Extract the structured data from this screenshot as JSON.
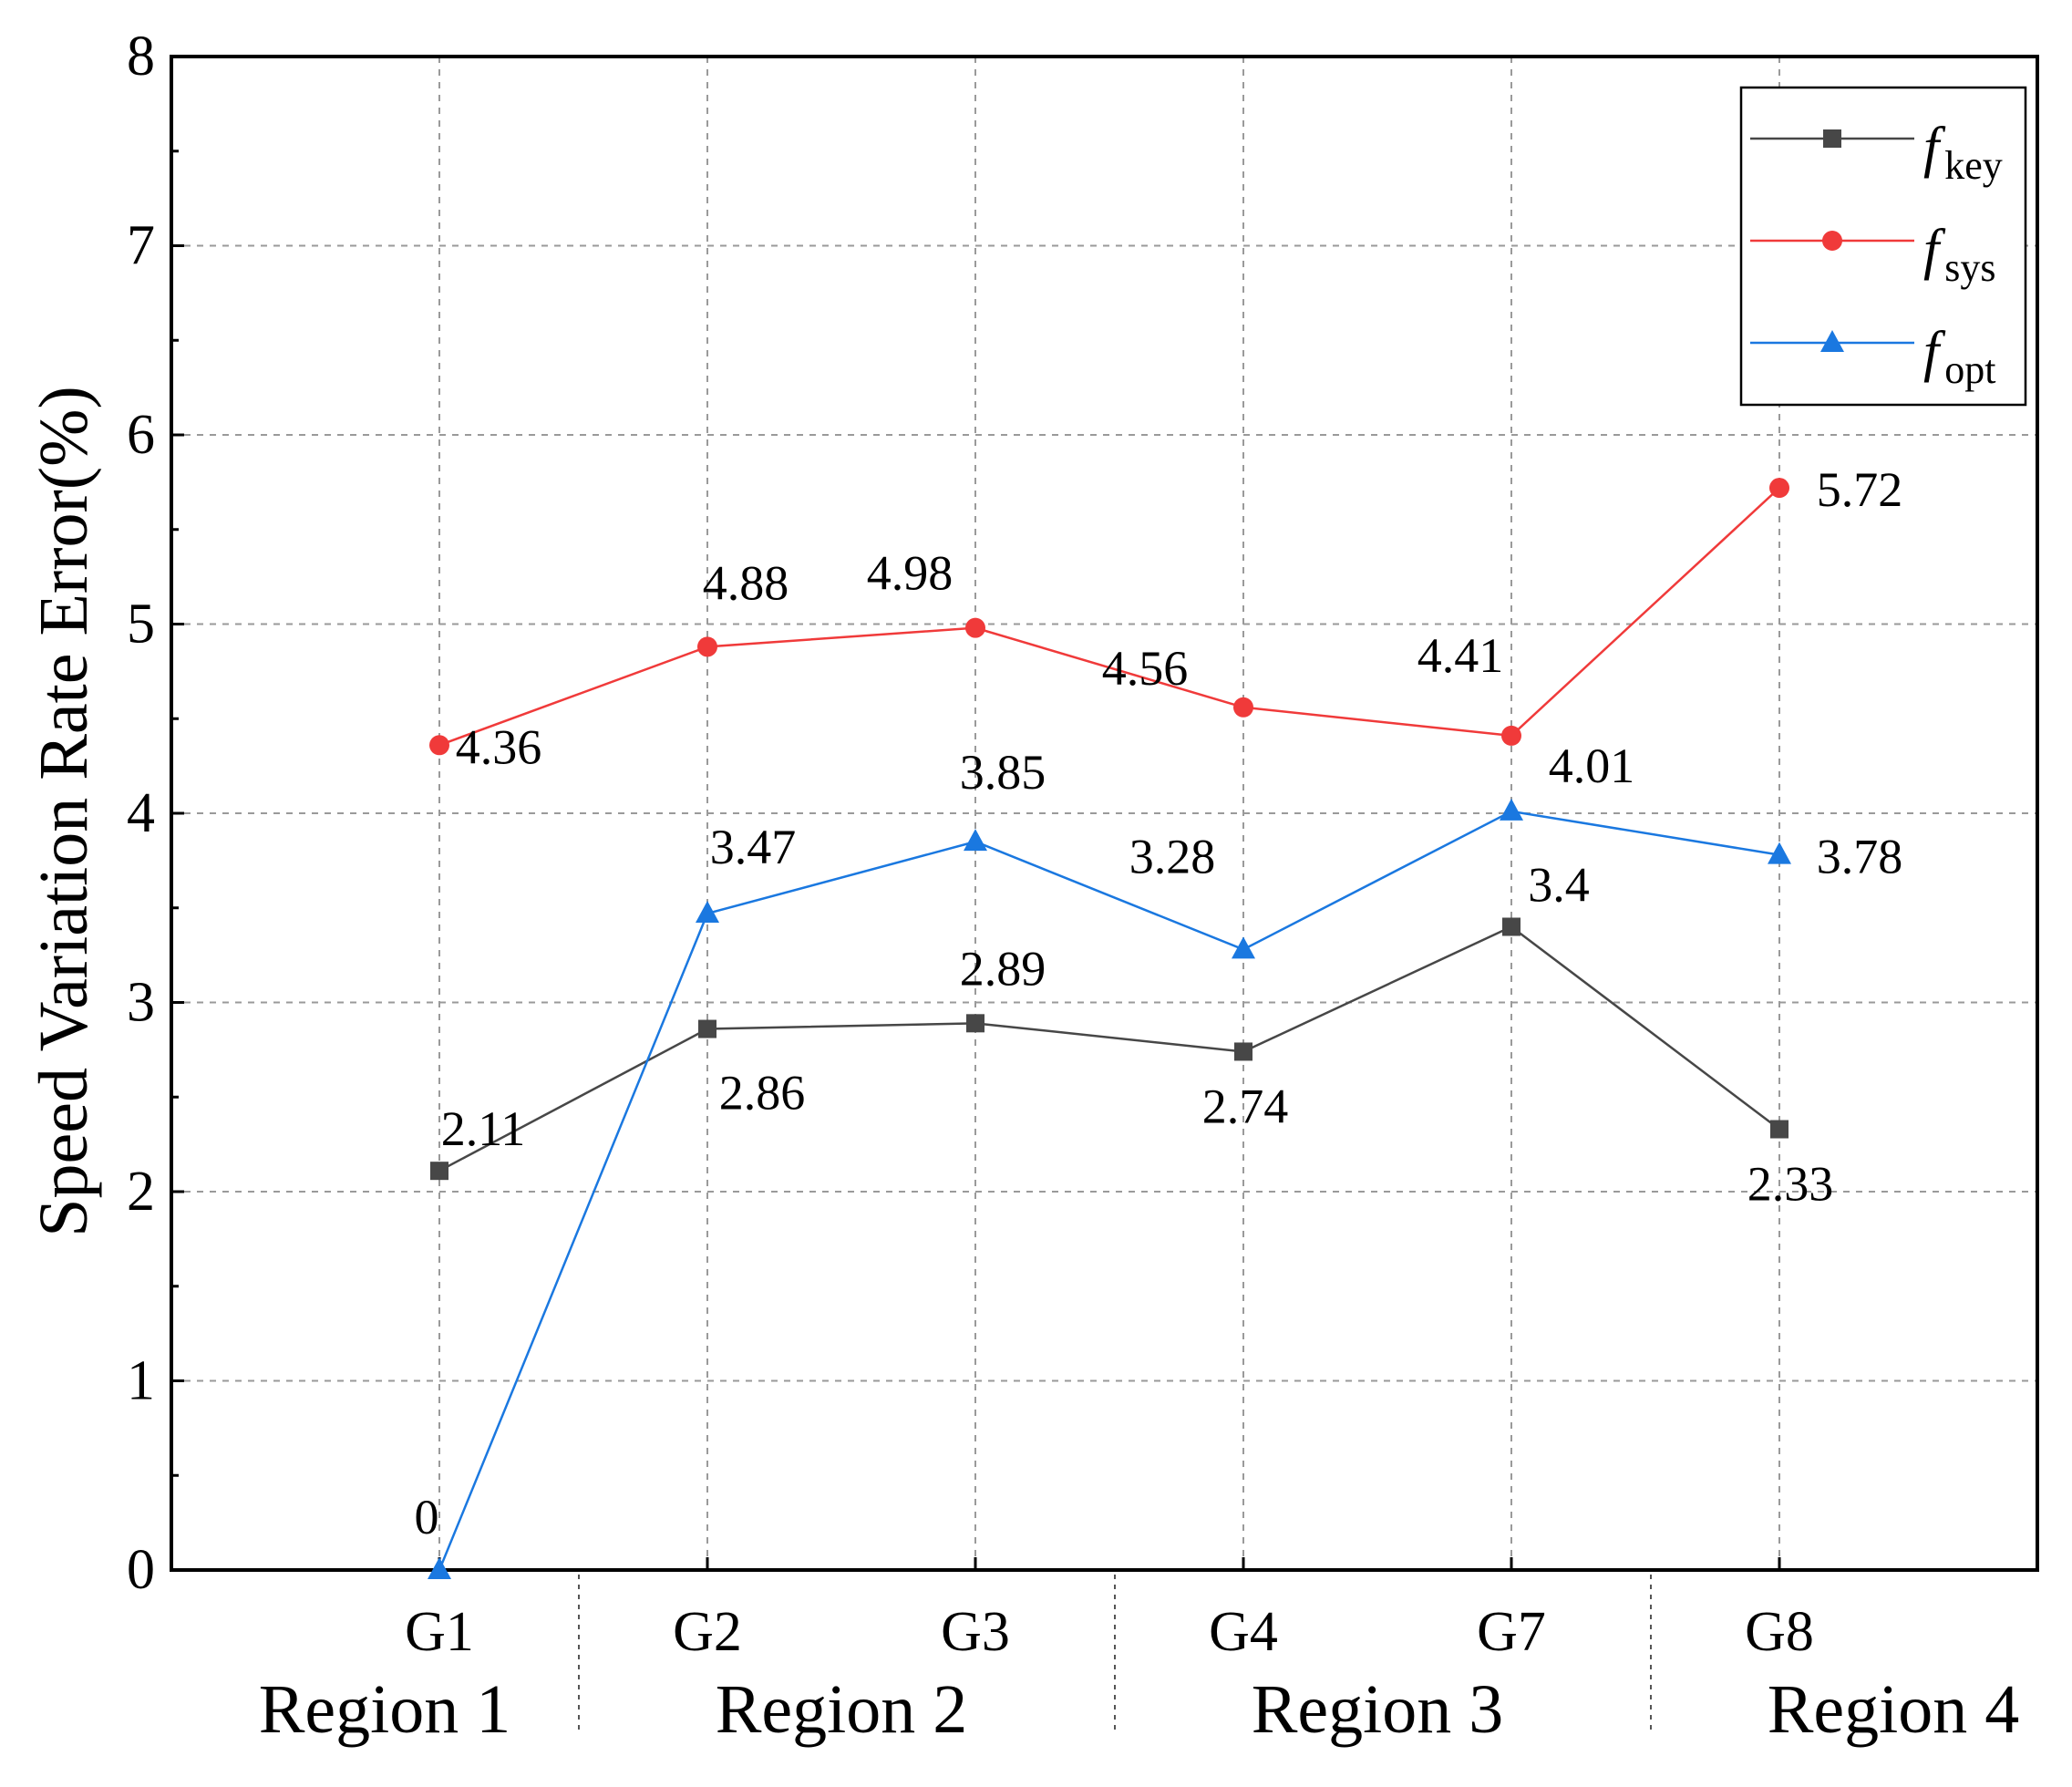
{
  "chart_data": {
    "type": "line",
    "title": "",
    "xlabel": "",
    "ylabel": "Speed Variation Rate Error(%)",
    "ylim": [
      0,
      8
    ],
    "yticks": [
      0,
      1,
      2,
      3,
      4,
      5,
      6,
      7,
      8
    ],
    "grid": true,
    "legend_position": "top-right",
    "categories": [
      "G1",
      "G2",
      "G3",
      "G4",
      "G7",
      "G8"
    ],
    "regions": [
      {
        "label": "Region 1",
        "categories": [
          "G1"
        ]
      },
      {
        "label": "Region 2",
        "categories": [
          "G2",
          "G3"
        ]
      },
      {
        "label": "Region 3",
        "categories": [
          "G4",
          "G7"
        ]
      },
      {
        "label": "Region 4",
        "categories": [
          "G8"
        ]
      }
    ],
    "series": [
      {
        "name": "f_key",
        "legend_main": "f",
        "legend_sub": "key",
        "marker": "square",
        "color": "#474747",
        "values": [
          2.11,
          2.86,
          2.89,
          2.74,
          3.4,
          2.33
        ],
        "labels": [
          "2.11",
          "2.86",
          "2.89",
          "2.74",
          "3.4",
          "2.33"
        ]
      },
      {
        "name": "f_sys",
        "legend_main": "f",
        "legend_sub": "sys",
        "marker": "circle",
        "color": "#f03a3a",
        "values": [
          4.36,
          4.88,
          4.98,
          4.56,
          4.41,
          5.72
        ],
        "labels": [
          "4.36",
          "4.88",
          "4.98",
          "4.56",
          "4.41",
          "5.72"
        ]
      },
      {
        "name": "f_opt",
        "legend_main": "f",
        "legend_sub": "opt",
        "marker": "triangle",
        "color": "#1a78e0",
        "values": [
          0,
          3.47,
          3.85,
          3.28,
          4.01,
          3.78
        ],
        "labels": [
          "0",
          "3.47",
          "3.85",
          "3.28",
          "4.01",
          "3.78"
        ]
      }
    ]
  }
}
